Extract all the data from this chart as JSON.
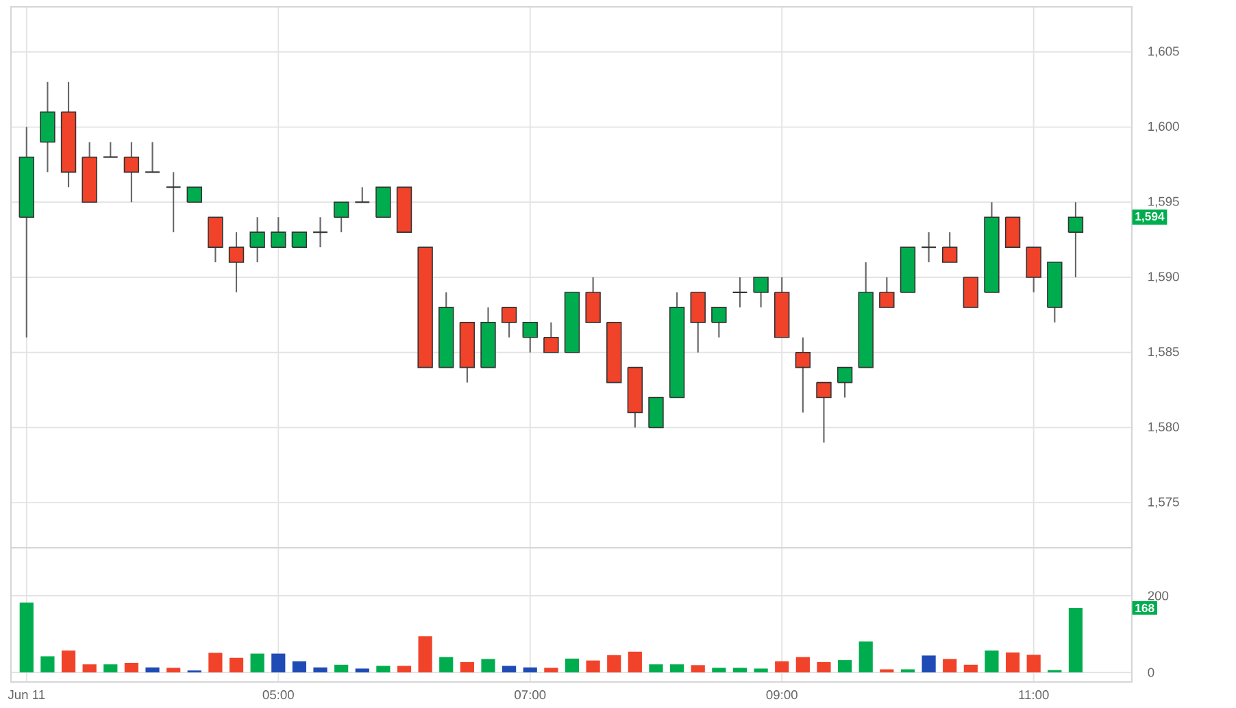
{
  "chart_data": [
    {
      "type": "candlestick",
      "x": [
        3,
        3.1667,
        3.3333,
        3.5,
        3.6667,
        3.8333,
        4,
        4.1667,
        4.3333,
        4.5,
        4.6667,
        4.8333,
        5,
        5.1667,
        5.3333,
        5.5,
        5.6667,
        5.8333,
        6,
        6.1667,
        6.3333,
        6.5,
        6.6667,
        6.8333,
        7,
        7.1667,
        7.3333,
        7.5,
        7.6667,
        7.8333,
        8,
        8.1667,
        8.3333,
        8.5,
        8.6667,
        8.8333,
        9,
        9.1667,
        9.3333,
        9.5,
        9.6667,
        9.8333,
        10,
        10.1667,
        10.3333,
        10.5,
        10.6667,
        10.8333,
        11,
        11.1667,
        11.3333
      ],
      "ohlc": [
        [
          1594,
          1600,
          1586,
          1598
        ],
        [
          1599,
          1603,
          1597,
          1601
        ],
        [
          1601,
          1603,
          1596,
          1597
        ],
        [
          1598,
          1599,
          1595,
          1595
        ],
        [
          1598,
          1599,
          1598,
          1598
        ],
        [
          1598,
          1599,
          1595,
          1597
        ],
        [
          1597,
          1599,
          1597,
          1597
        ],
        [
          1596,
          1597,
          1593,
          1596
        ],
        [
          1595,
          1596,
          1595,
          1596
        ],
        [
          1594,
          1594,
          1591,
          1592
        ],
        [
          1592,
          1593,
          1589,
          1591
        ],
        [
          1592,
          1594,
          1591,
          1593
        ],
        [
          1592,
          1594,
          1592,
          1593
        ],
        [
          1592,
          1593,
          1592,
          1593
        ],
        [
          1593,
          1594,
          1592,
          1593
        ],
        [
          1594,
          1595,
          1593,
          1595
        ],
        [
          1595,
          1596,
          1595,
          1595
        ],
        [
          1594,
          1596,
          1594,
          1596
        ],
        [
          1596,
          1596,
          1593,
          1593
        ],
        [
          1592,
          1592,
          1584,
          1584
        ],
        [
          1584,
          1589,
          1584,
          1588
        ],
        [
          1587,
          1587,
          1583,
          1584
        ],
        [
          1584,
          1588,
          1584,
          1587
        ],
        [
          1588,
          1588,
          1586,
          1587
        ],
        [
          1586,
          1587,
          1585,
          1587
        ],
        [
          1586,
          1587,
          1585,
          1585
        ],
        [
          1585,
          1589,
          1585,
          1589
        ],
        [
          1589,
          1590,
          1587,
          1587
        ],
        [
          1587,
          1587,
          1583,
          1583
        ],
        [
          1584,
          1584,
          1580,
          1581
        ],
        [
          1580,
          1582,
          1580,
          1582
        ],
        [
          1582,
          1589,
          1582,
          1588
        ],
        [
          1589,
          1589,
          1585,
          1587
        ],
        [
          1587,
          1588,
          1586,
          1588
        ],
        [
          1589,
          1590,
          1588,
          1589
        ],
        [
          1589,
          1590,
          1588,
          1590
        ],
        [
          1589,
          1590,
          1586,
          1586
        ],
        [
          1585,
          1586,
          1581,
          1584
        ],
        [
          1583,
          1583,
          1579,
          1582
        ],
        [
          1583,
          1584,
          1582,
          1584
        ],
        [
          1584,
          1591,
          1584,
          1589
        ],
        [
          1589,
          1590,
          1588,
          1588
        ],
        [
          1589,
          1592,
          1589,
          1592
        ],
        [
          1592,
          1593,
          1591,
          1592
        ],
        [
          1592,
          1593,
          1591,
          1591
        ],
        [
          1590,
          1590,
          1588,
          1588
        ],
        [
          1589,
          1595,
          1589,
          1594
        ],
        [
          1594,
          1594,
          1592,
          1592
        ],
        [
          1592,
          1592,
          1589,
          1590
        ],
        [
          1588,
          1591,
          1587,
          1591
        ],
        [
          1593,
          1595,
          1590,
          1594
        ]
      ],
      "colors": [
        "#00ad4e",
        "#00ad4e",
        "#f0432a",
        "#f0432a",
        "#333333",
        "#f0432a",
        "#333333",
        "#333333",
        "#00ad4e",
        "#f0432a",
        "#f0432a",
        "#00ad4e",
        "#00ad4e",
        "#00ad4e",
        "#333333",
        "#00ad4e",
        "#333333",
        "#00ad4e",
        "#f0432a",
        "#f0432a",
        "#00ad4e",
        "#f0432a",
        "#00ad4e",
        "#f0432a",
        "#00ad4e",
        "#f0432a",
        "#00ad4e",
        "#f0432a",
        "#f0432a",
        "#f0432a",
        "#00ad4e",
        "#00ad4e",
        "#f0432a",
        "#00ad4e",
        "#333333",
        "#00ad4e",
        "#f0432a",
        "#f0432a",
        "#f0432a",
        "#00ad4e",
        "#00ad4e",
        "#f0432a",
        "#00ad4e",
        "#333333",
        "#f0432a",
        "#f0432a",
        "#00ad4e",
        "#f0432a",
        "#f0432a",
        "#00ad4e",
        "#00ad4e"
      ],
      "xlim": [
        2.876,
        11.78
      ],
      "ylim": [
        1572,
        1608
      ],
      "xticks": [
        {
          "value": 3,
          "label": null
        },
        {
          "value": 5,
          "label": null
        },
        {
          "value": 7,
          "label": null
        },
        {
          "value": 9,
          "label": null
        },
        {
          "value": 11,
          "label": null
        }
      ],
      "yticks": [
        {
          "value": 1575,
          "label": "1,575"
        },
        {
          "value": 1580,
          "label": "1,580"
        },
        {
          "value": 1585,
          "label": "1,585"
        },
        {
          "value": 1590,
          "label": "1,590"
        },
        {
          "value": 1595,
          "label": "1,595"
        },
        {
          "value": 1600,
          "label": "1,600"
        },
        {
          "value": 1605,
          "label": "1,605"
        }
      ],
      "tick_labels": "y",
      "grid": true,
      "annotations": [
        "1,594"
      ]
    },
    {
      "type": "bar",
      "x": [
        3,
        3.1667,
        3.3333,
        3.5,
        3.6667,
        3.8333,
        4,
        4.1667,
        4.3333,
        4.5,
        4.6667,
        4.8333,
        5,
        5.1667,
        5.3333,
        5.5,
        5.6667,
        5.8333,
        6,
        6.1667,
        6.3333,
        6.5,
        6.6667,
        6.8333,
        7,
        7.1667,
        7.3333,
        7.5,
        7.6667,
        7.8333,
        8,
        8.1667,
        8.3333,
        8.5,
        8.6667,
        8.8333,
        9,
        9.1667,
        9.3333,
        9.5,
        9.6667,
        9.8333,
        10,
        10.1667,
        10.3333,
        10.5,
        10.6667,
        10.8333,
        11,
        11.1667,
        11.3333
      ],
      "values": [
        182,
        42,
        57,
        21,
        21,
        25,
        13,
        12,
        5,
        51,
        38,
        49,
        49,
        29,
        13,
        20,
        10,
        17,
        17,
        94,
        40,
        27,
        35,
        17,
        13,
        12,
        36,
        31,
        45,
        54,
        21,
        21,
        19,
        12,
        12,
        10,
        29,
        40,
        27,
        32,
        81,
        8,
        8,
        44,
        35,
        20,
        57,
        52,
        46,
        6,
        168
      ],
      "colors": [
        "#00ad4e",
        "#00ad4e",
        "#f0432a",
        "#f0432a",
        "#00ad4e",
        "#f0432a",
        "#1e4bb5",
        "#f0432a",
        "#1e4bb5",
        "#f0432a",
        "#f0432a",
        "#00ad4e",
        "#1e4bb5",
        "#1e4bb5",
        "#1e4bb5",
        "#00ad4e",
        "#1e4bb5",
        "#00ad4e",
        "#f0432a",
        "#f0432a",
        "#00ad4e",
        "#f0432a",
        "#00ad4e",
        "#1e4bb5",
        "#1e4bb5",
        "#f0432a",
        "#00ad4e",
        "#f0432a",
        "#f0432a",
        "#f0432a",
        "#00ad4e",
        "#00ad4e",
        "#f0432a",
        "#00ad4e",
        "#00ad4e",
        "#00ad4e",
        "#f0432a",
        "#f0432a",
        "#f0432a",
        "#00ad4e",
        "#00ad4e",
        "#f0432a",
        "#00ad4e",
        "#1e4bb5",
        "#f0432a",
        "#f0432a",
        "#00ad4e",
        "#f0432a",
        "#f0432a",
        "#00ad4e",
        "#00ad4e"
      ],
      "xlim": [
        2.876,
        11.78
      ],
      "ylim": [
        -25,
        325
      ],
      "xticks": [
        {
          "value": 3,
          "label": "Jun 11"
        },
        {
          "value": 5,
          "label": "05:00"
        },
        {
          "value": 7,
          "label": "07:00"
        },
        {
          "value": 9,
          "label": "09:00"
        },
        {
          "value": 11,
          "label": "11:00"
        }
      ],
      "yticks": [
        0,
        200
      ],
      "grid": true,
      "annotations": [
        "168"
      ]
    }
  ]
}
